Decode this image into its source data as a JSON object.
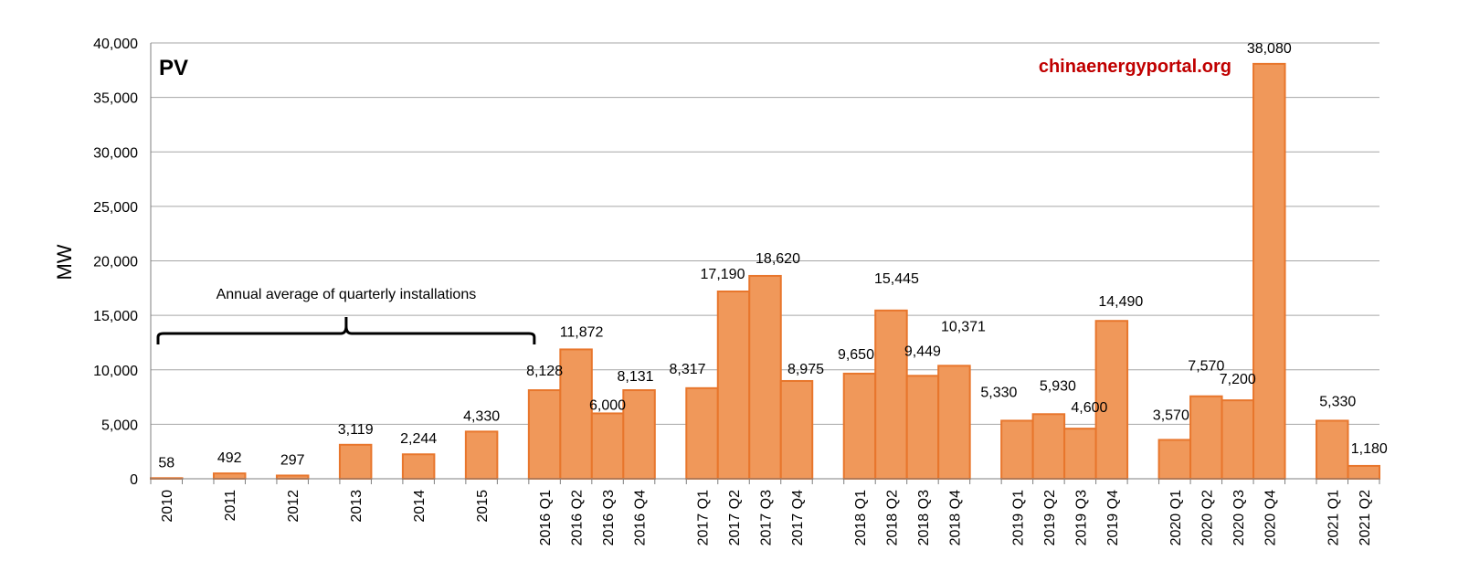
{
  "chart_data": {
    "type": "bar",
    "title": "PV",
    "ylabel": "MW",
    "xlabel": "",
    "ylim": [
      0,
      40000
    ],
    "yticks": [
      0,
      5000,
      10000,
      15000,
      20000,
      25000,
      30000,
      35000,
      40000
    ],
    "ytick_labels": [
      "0",
      "5,000",
      "10,000",
      "15,000",
      "20,000",
      "25,000",
      "30,000",
      "35,000",
      "40,000"
    ],
    "grid": "horizontal",
    "bar_color": "#f0985a",
    "bar_edge_color": "#e8762c",
    "categories": [
      "2010",
      "2011",
      "2012",
      "2013",
      "2014",
      "2015",
      "2016 Q1",
      "2016 Q2",
      "2016 Q3",
      "2016 Q4",
      "2017 Q1",
      "2017 Q2",
      "2017 Q3",
      "2017 Q4",
      "2018 Q1",
      "2018 Q2",
      "2018 Q3",
      "2018 Q4",
      "2019 Q1",
      "2019 Q2",
      "2019 Q3",
      "2019 Q4",
      "2020 Q1",
      "2020 Q2",
      "2020 Q3",
      "2020 Q4",
      "2021 Q1",
      "2021 Q2"
    ],
    "values": [
      58,
      492,
      297,
      3119,
      2244,
      4330,
      8128,
      11872,
      6000,
      8131,
      8317,
      17190,
      18620,
      8975,
      9650,
      15445,
      9449,
      10371,
      5330,
      5930,
      4600,
      14490,
      3570,
      7570,
      7200,
      38080,
      5330,
      1180
    ],
    "data_labels": [
      "58",
      "492",
      "297",
      "3,119",
      "2,244",
      "4,330",
      "8,128",
      "11,872",
      "6,000",
      "8,131",
      "8,317",
      "17,190",
      "18,620",
      "8,975",
      "9,650",
      "15,445",
      "9,449",
      "10,371",
      "5,330",
      "5,930",
      "4,600",
      "14,490",
      "3,570",
      "7,570",
      "7,200",
      "38,080",
      "5,330",
      "1,180"
    ],
    "annotations": [
      {
        "text": "Annual average of quarterly installations",
        "type": "brace",
        "spans": [
          "2010",
          "2015"
        ]
      }
    ],
    "watermark": {
      "text": "chinaenergyportal.org",
      "color": "#c00000"
    }
  }
}
